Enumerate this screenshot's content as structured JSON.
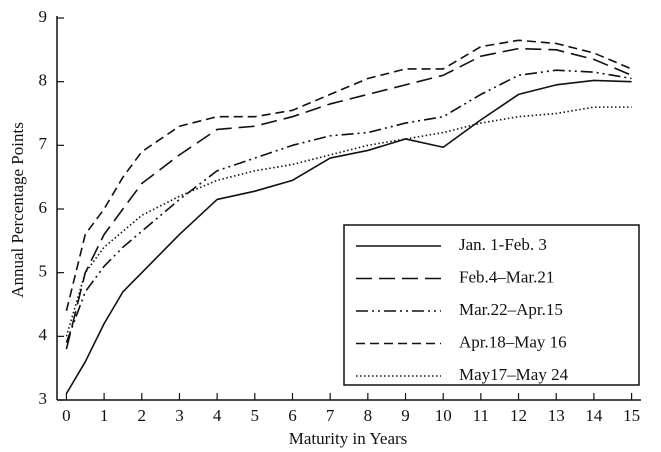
{
  "chart_data": {
    "type": "line",
    "xlabel": "Maturity in Years",
    "ylabel": "Annual Percentage Points",
    "x": [
      0,
      0.5,
      1,
      1.5,
      2,
      3,
      4,
      5,
      6,
      7,
      8,
      9,
      10,
      11,
      12,
      13,
      14,
      15
    ],
    "series": [
      {
        "name": "Jan. 1-Feb. 3",
        "color": "#111111",
        "line_style": "solid",
        "values": [
          3.1,
          3.6,
          4.2,
          4.7,
          5.0,
          5.6,
          6.15,
          6.28,
          6.45,
          6.8,
          6.92,
          7.1,
          6.97,
          7.4,
          7.8,
          7.95,
          8.02,
          8.0
        ]
      },
      {
        "name": "Feb.4–Mar.21",
        "color": "#111111",
        "line_style": "long-dash",
        "values": [
          3.8,
          5.0,
          5.6,
          6.0,
          6.4,
          6.85,
          7.25,
          7.3,
          7.45,
          7.65,
          7.8,
          7.95,
          8.1,
          8.4,
          8.52,
          8.5,
          8.35,
          8.1
        ]
      },
      {
        "name": "Mar.22–Apr.15",
        "color": "#111111",
        "line_style": "dash-dot-dot",
        "values": [
          3.9,
          4.7,
          5.1,
          5.4,
          5.65,
          6.15,
          6.6,
          6.8,
          7.0,
          7.15,
          7.2,
          7.35,
          7.45,
          7.8,
          8.1,
          8.18,
          8.15,
          8.05
        ]
      },
      {
        "name": "Apr.18–May 16",
        "color": "#111111",
        "line_style": "dash",
        "values": [
          4.4,
          5.6,
          6.0,
          6.5,
          6.9,
          7.3,
          7.45,
          7.45,
          7.55,
          7.8,
          8.05,
          8.2,
          8.2,
          8.55,
          8.65,
          8.6,
          8.45,
          8.2
        ]
      },
      {
        "name": "May17–May 24",
        "color": "#111111",
        "line_style": "dotted",
        "values": [
          4.0,
          5.0,
          5.4,
          5.65,
          5.9,
          6.2,
          6.45,
          6.6,
          6.7,
          6.85,
          7.0,
          7.1,
          7.2,
          7.35,
          7.45,
          7.5,
          7.6,
          7.6
        ]
      }
    ],
    "xlim": [
      -0.25,
      15.25
    ],
    "xticks": [
      0,
      1,
      2,
      3,
      4,
      5,
      6,
      7,
      8,
      9,
      10,
      11,
      12,
      13,
      14,
      15
    ],
    "ylim": [
      3,
      9
    ],
    "yticks": [
      3,
      4,
      5,
      6,
      7,
      8,
      9
    ],
    "grid": false,
    "legend": "lower right"
  }
}
